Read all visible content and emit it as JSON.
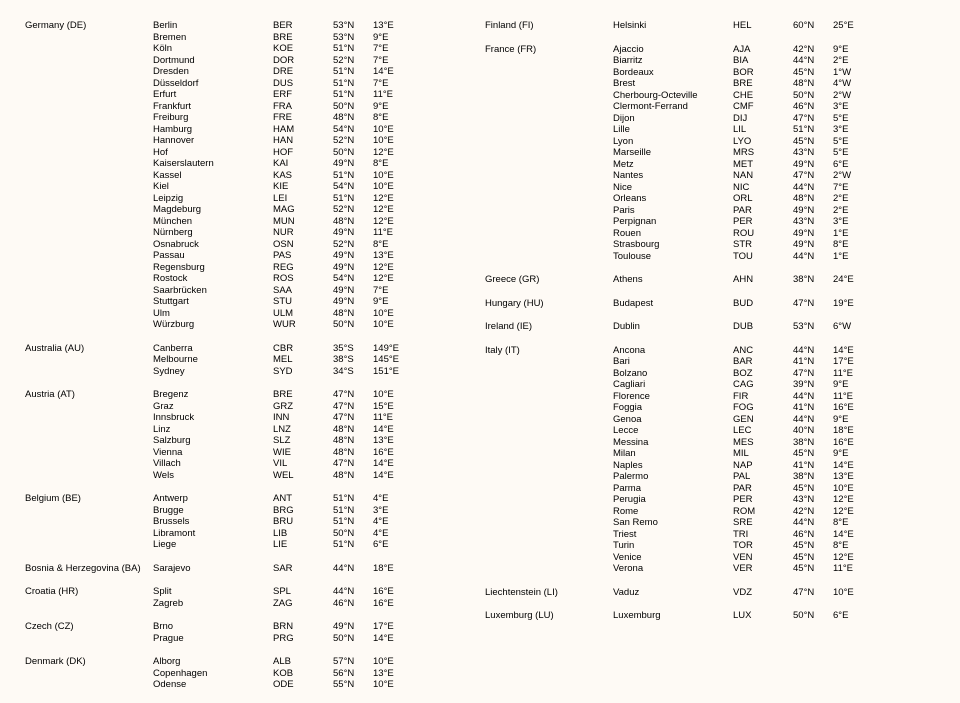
{
  "left": [
    {
      "country": "Germany (DE)",
      "cities": [
        {
          "name": "Berlin",
          "code": "BER",
          "lat": "53°N",
          "lon": "13°E"
        },
        {
          "name": "Bremen",
          "code": "BRE",
          "lat": "53°N",
          "lon": "9°E"
        },
        {
          "name": "Köln",
          "code": "KOE",
          "lat": "51°N",
          "lon": "7°E"
        },
        {
          "name": "Dortmund",
          "code": "DOR",
          "lat": "52°N",
          "lon": "7°E"
        },
        {
          "name": "Dresden",
          "code": "DRE",
          "lat": "51°N",
          "lon": "14°E"
        },
        {
          "name": "Düsseldorf",
          "code": "DUS",
          "lat": "51°N",
          "lon": "7°E"
        },
        {
          "name": "Erfurt",
          "code": "ERF",
          "lat": "51°N",
          "lon": "11°E"
        },
        {
          "name": "Frankfurt",
          "code": "FRA",
          "lat": "50°N",
          "lon": "9°E"
        },
        {
          "name": "Freiburg",
          "code": "FRE",
          "lat": "48°N",
          "lon": "8°E"
        },
        {
          "name": "Hamburg",
          "code": "HAM",
          "lat": "54°N",
          "lon": "10°E"
        },
        {
          "name": "Hannover",
          "code": "HAN",
          "lat": "52°N",
          "lon": "10°E"
        },
        {
          "name": "Hof",
          "code": "HOF",
          "lat": "50°N",
          "lon": "12°E"
        },
        {
          "name": "Kaiserslautern",
          "code": "KAI",
          "lat": "49°N",
          "lon": "8°E"
        },
        {
          "name": "Kassel",
          "code": "KAS",
          "lat": "51°N",
          "lon": "10°E"
        },
        {
          "name": "Kiel",
          "code": "KIE",
          "lat": "54°N",
          "lon": "10°E"
        },
        {
          "name": "Leipzig",
          "code": "LEI",
          "lat": "51°N",
          "lon": "12°E"
        },
        {
          "name": "Magdeburg",
          "code": "MAG",
          "lat": "52°N",
          "lon": "12°E"
        },
        {
          "name": "München",
          "code": "MUN",
          "lat": "48°N",
          "lon": "12°E"
        },
        {
          "name": "Nürnberg",
          "code": "NUR",
          "lat": "49°N",
          "lon": "11°E"
        },
        {
          "name": "Osnabruck",
          "code": "OSN",
          "lat": "52°N",
          "lon": "8°E"
        },
        {
          "name": "Passau",
          "code": "PAS",
          "lat": "49°N",
          "lon": "13°E"
        },
        {
          "name": "Regensburg",
          "code": "REG",
          "lat": "49°N",
          "lon": "12°E"
        },
        {
          "name": "Rostock",
          "code": "ROS",
          "lat": "54°N",
          "lon": "12°E"
        },
        {
          "name": "Saarbrücken",
          "code": "SAA",
          "lat": "49°N",
          "lon": "7°E"
        },
        {
          "name": "Stuttgart",
          "code": "STU",
          "lat": "49°N",
          "lon": "9°E"
        },
        {
          "name": "Ulm",
          "code": "ULM",
          "lat": "48°N",
          "lon": "10°E"
        },
        {
          "name": "Würzburg",
          "code": "WUR",
          "lat": "50°N",
          "lon": "10°E"
        }
      ]
    },
    {
      "country": "Australia (AU)",
      "cities": [
        {
          "name": "Canberra",
          "code": "CBR",
          "lat": "35°S",
          "lon": "149°E"
        },
        {
          "name": "Melbourne",
          "code": "MEL",
          "lat": "38°S",
          "lon": "145°E"
        },
        {
          "name": "Sydney",
          "code": "SYD",
          "lat": "34°S",
          "lon": "151°E"
        }
      ]
    },
    {
      "country": "Austria (AT)",
      "cities": [
        {
          "name": "Bregenz",
          "code": "BRE",
          "lat": "47°N",
          "lon": "10°E"
        },
        {
          "name": "Graz",
          "code": "GRZ",
          "lat": "47°N",
          "lon": "15°E"
        },
        {
          "name": "Innsbruck",
          "code": "INN",
          "lat": "47°N",
          "lon": "11°E"
        },
        {
          "name": "Linz",
          "code": "LNZ",
          "lat": "48°N",
          "lon": "14°E"
        },
        {
          "name": "Salzburg",
          "code": "SLZ",
          "lat": "48°N",
          "lon": "13°E"
        },
        {
          "name": "Vienna",
          "code": "WIE",
          "lat": "48°N",
          "lon": "16°E"
        },
        {
          "name": "Villach",
          "code": "VIL",
          "lat": "47°N",
          "lon": "14°E"
        },
        {
          "name": "Wels",
          "code": "WEL",
          "lat": "48°N",
          "lon": "14°E"
        }
      ]
    },
    {
      "country": "Belgium (BE)",
      "cities": [
        {
          "name": "Antwerp",
          "code": "ANT",
          "lat": "51°N",
          "lon": "4°E"
        },
        {
          "name": "Brugge",
          "code": "BRG",
          "lat": "51°N",
          "lon": "3°E"
        },
        {
          "name": "Brussels",
          "code": "BRU",
          "lat": "51°N",
          "lon": "4°E"
        },
        {
          "name": "Libramont",
          "code": "LIB",
          "lat": "50°N",
          "lon": "4°E"
        },
        {
          "name": "Liege",
          "code": "LIE",
          "lat": "51°N",
          "lon": "6°E"
        }
      ]
    },
    {
      "country": "Bosnia & Herzegovina (BA)",
      "cities": [
        {
          "name": "Sarajevo",
          "code": "SAR",
          "lat": "44°N",
          "lon": "18°E"
        }
      ]
    },
    {
      "country": "Croatia (HR)",
      "cities": [
        {
          "name": "Split",
          "code": "SPL",
          "lat": "44°N",
          "lon": "16°E"
        },
        {
          "name": "Zagreb",
          "code": "ZAG",
          "lat": "46°N",
          "lon": "16°E"
        }
      ]
    },
    {
      "country": "Czech (CZ)",
      "cities": [
        {
          "name": "Brno",
          "code": "BRN",
          "lat": "49°N",
          "lon": "17°E"
        },
        {
          "name": "Prague",
          "code": "PRG",
          "lat": "50°N",
          "lon": "14°E"
        }
      ]
    },
    {
      "country": "Denmark (DK)",
      "cities": [
        {
          "name": "Alborg",
          "code": "ALB",
          "lat": "57°N",
          "lon": "10°E"
        },
        {
          "name": "Copenhagen",
          "code": "KOB",
          "lat": "56°N",
          "lon": "13°E"
        },
        {
          "name": "Odense",
          "code": "ODE",
          "lat": "55°N",
          "lon": "10°E"
        }
      ]
    }
  ],
  "right": [
    {
      "country": "Finland (FI)",
      "cities": [
        {
          "name": "Helsinki",
          "code": "HEL",
          "lat": "60°N",
          "lon": "25°E"
        }
      ]
    },
    {
      "country": "France (FR)",
      "cities": [
        {
          "name": "Ajaccio",
          "code": "AJA",
          "lat": "42°N",
          "lon": "9°E"
        },
        {
          "name": "Biarritz",
          "code": "BIA",
          "lat": "44°N",
          "lon": "2°E"
        },
        {
          "name": "Bordeaux",
          "code": "BOR",
          "lat": "45°N",
          "lon": "1°W"
        },
        {
          "name": "Brest",
          "code": "BRE",
          "lat": "48°N",
          "lon": "4°W"
        },
        {
          "name": "Cherbourg-Octeville",
          "code": "CHE",
          "lat": "50°N",
          "lon": "2°W"
        },
        {
          "name": "Clermont-Ferrand",
          "code": "CMF",
          "lat": "46°N",
          "lon": "3°E"
        },
        {
          "name": "Dijon",
          "code": "DIJ",
          "lat": "47°N",
          "lon": "5°E"
        },
        {
          "name": "Lille",
          "code": "LIL",
          "lat": "51°N",
          "lon": "3°E"
        },
        {
          "name": "Lyon",
          "code": "LYO",
          "lat": "45°N",
          "lon": "5°E"
        },
        {
          "name": "Marseille",
          "code": "MRS",
          "lat": "43°N",
          "lon": "5°E"
        },
        {
          "name": "Metz",
          "code": "MET",
          "lat": "49°N",
          "lon": "6°E"
        },
        {
          "name": "Nantes",
          "code": "NAN",
          "lat": "47°N",
          "lon": "2°W"
        },
        {
          "name": "Nice",
          "code": "NIC",
          "lat": "44°N",
          "lon": "7°E"
        },
        {
          "name": "Orleans",
          "code": "ORL",
          "lat": "48°N",
          "lon": "2°E"
        },
        {
          "name": "Paris",
          "code": "PAR",
          "lat": "49°N",
          "lon": "2°E"
        },
        {
          "name": "Perpignan",
          "code": "PER",
          "lat": "43°N",
          "lon": "3°E"
        },
        {
          "name": "Rouen",
          "code": "ROU",
          "lat": "49°N",
          "lon": "1°E"
        },
        {
          "name": "Strasbourg",
          "code": "STR",
          "lat": "49°N",
          "lon": "8°E"
        },
        {
          "name": "Toulouse",
          "code": "TOU",
          "lat": "44°N",
          "lon": "1°E"
        }
      ]
    },
    {
      "country": "Greece (GR)",
      "cities": [
        {
          "name": "Athens",
          "code": "AHN",
          "lat": "38°N",
          "lon": "24°E"
        }
      ]
    },
    {
      "country": "Hungary (HU)",
      "cities": [
        {
          "name": "Budapest",
          "code": "BUD",
          "lat": "47°N",
          "lon": "19°E"
        }
      ]
    },
    {
      "country": "Ireland (IE)",
      "cities": [
        {
          "name": "Dublin",
          "code": "DUB",
          "lat": "53°N",
          "lon": "6°W"
        }
      ]
    },
    {
      "country": "Italy (IT)",
      "cities": [
        {
          "name": "Ancona",
          "code": "ANC",
          "lat": "44°N",
          "lon": "14°E"
        },
        {
          "name": "Bari",
          "code": "BAR",
          "lat": "41°N",
          "lon": "17°E"
        },
        {
          "name": "Bolzano",
          "code": "BOZ",
          "lat": "47°N",
          "lon": "11°E"
        },
        {
          "name": "Cagliari",
          "code": "CAG",
          "lat": "39°N",
          "lon": "9°E"
        },
        {
          "name": "Florence",
          "code": "FIR",
          "lat": "44°N",
          "lon": "11°E"
        },
        {
          "name": "Foggia",
          "code": "FOG",
          "lat": "41°N",
          "lon": "16°E"
        },
        {
          "name": "Genoa",
          "code": "GEN",
          "lat": "44°N",
          "lon": "9°E"
        },
        {
          "name": "Lecce",
          "code": "LEC",
          "lat": "40°N",
          "lon": "18°E"
        },
        {
          "name": "Messina",
          "code": "MES",
          "lat": "38°N",
          "lon": "16°E"
        },
        {
          "name": "Milan",
          "code": "MIL",
          "lat": "45°N",
          "lon": "9°E"
        },
        {
          "name": "Naples",
          "code": "NAP",
          "lat": "41°N",
          "lon": "14°E"
        },
        {
          "name": "Palermo",
          "code": "PAL",
          "lat": "38°N",
          "lon": "13°E"
        },
        {
          "name": "Parma",
          "code": "PAR",
          "lat": "45°N",
          "lon": "10°E"
        },
        {
          "name": "Perugia",
          "code": "PER",
          "lat": "43°N",
          "lon": "12°E"
        },
        {
          "name": "Rome",
          "code": "ROM",
          "lat": "42°N",
          "lon": "12°E"
        },
        {
          "name": "San Remo",
          "code": "SRE",
          "lat": "44°N",
          "lon": "8°E"
        },
        {
          "name": "Triest",
          "code": "TRI",
          "lat": "46°N",
          "lon": "14°E"
        },
        {
          "name": "Turin",
          "code": "TOR",
          "lat": "45°N",
          "lon": "8°E"
        },
        {
          "name": "Venice",
          "code": "VEN",
          "lat": "45°N",
          "lon": "12°E"
        },
        {
          "name": "Verona",
          "code": "VER",
          "lat": "45°N",
          "lon": "11°E"
        }
      ]
    },
    {
      "country": "Liechtenstein (LI)",
      "cities": [
        {
          "name": "Vaduz",
          "code": "VDZ",
          "lat": "47°N",
          "lon": "10°E"
        }
      ]
    },
    {
      "country": "Luxemburg (LU)",
      "cities": [
        {
          "name": "Luxemburg",
          "code": "LUX",
          "lat": "50°N",
          "lon": "6°E"
        }
      ]
    }
  ]
}
